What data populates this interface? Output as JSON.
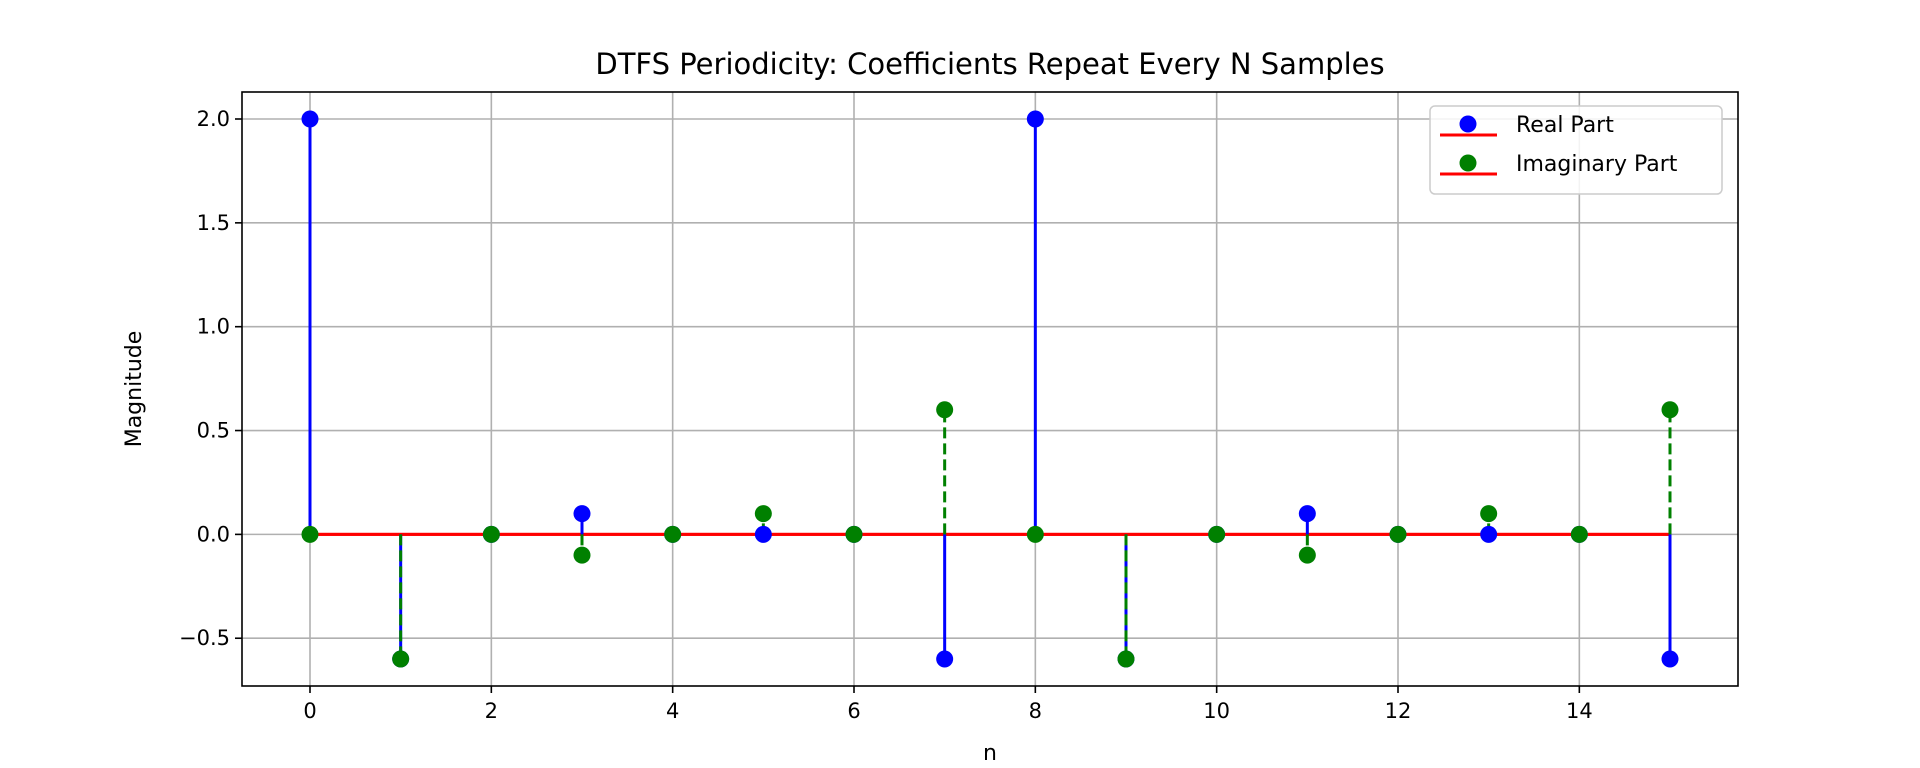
{
  "chart_data": {
    "type": "stem",
    "title": "DTFS Periodicity: Coefficients Repeat Every N Samples",
    "xlabel": "n",
    "ylabel": "Magnitude",
    "xlim": [
      -0.75,
      15.75
    ],
    "ylim": [
      -0.73,
      2.13
    ],
    "x_ticks": [
      0,
      2,
      4,
      6,
      8,
      10,
      12,
      14
    ],
    "y_ticks": [
      -0.5,
      0.0,
      0.5,
      1.0,
      1.5,
      2.0
    ],
    "y_tick_labels": [
      "−0.5",
      "0.0",
      "0.5",
      "1.0",
      "1.5",
      "2.0"
    ],
    "grid": true,
    "legend_position": "top-right",
    "baseline_color": "#ff0000",
    "x": [
      0,
      1,
      2,
      3,
      4,
      5,
      6,
      7,
      8,
      9,
      10,
      11,
      12,
      13,
      14,
      15
    ],
    "series": [
      {
        "name": "Real Part",
        "color": "#0000ff",
        "line_style": "solid",
        "values": [
          2.0,
          -0.6,
          0.0,
          0.1,
          0.0,
          0.0,
          0.0,
          -0.6,
          2.0,
          -0.6,
          0.0,
          0.1,
          0.0,
          0.0,
          0.0,
          -0.6
        ]
      },
      {
        "name": "Imaginary Part",
        "color": "#008000",
        "line_style": "dashed",
        "values": [
          0.0,
          -0.6,
          0.0,
          -0.1,
          0.0,
          0.1,
          0.0,
          0.6,
          0.0,
          -0.6,
          0.0,
          -0.1,
          0.0,
          0.1,
          0.0,
          0.6
        ]
      }
    ]
  }
}
